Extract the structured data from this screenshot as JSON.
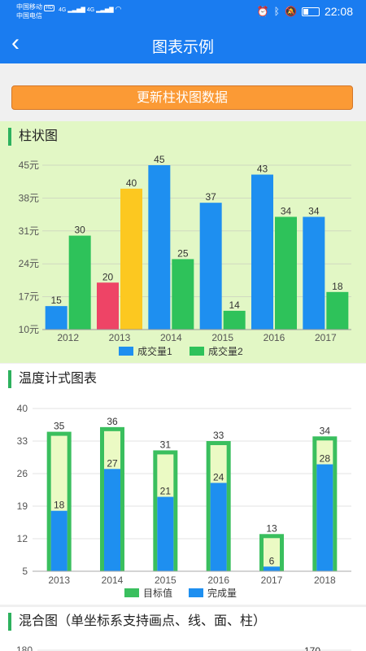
{
  "status_bar": {
    "carrier1": "中国移动",
    "carrier2": "中国电信",
    "hd_badge": "HD",
    "signal1": "4G",
    "signal2": "4G",
    "time": "22:08",
    "icons": [
      "alarm-icon",
      "bluetooth-icon",
      "mute-icon",
      "battery-icon"
    ]
  },
  "nav": {
    "back_icon": "‹",
    "title": "图表示例"
  },
  "update_button": {
    "label": "更新柱状图数据",
    "color": "#fb9a35"
  },
  "sections": {
    "bar": {
      "title": "柱状图"
    },
    "thermo": {
      "title": "温度计式图表"
    },
    "mixed": {
      "title": "混合图（单坐标系支持画点、线、面、柱）"
    }
  },
  "chart_data": [
    {
      "type": "bar",
      "categories": [
        "2012",
        "2013",
        "2014",
        "2015",
        "2016",
        "2017"
      ],
      "series": [
        {
          "name": "成交量1",
          "values": [
            15,
            20,
            45,
            37,
            43,
            34
          ],
          "color": "#1e8ff0",
          "point_colors": [
            null,
            "#ee4466",
            null,
            null,
            null,
            null
          ]
        },
        {
          "name": "成交量2",
          "values": [
            30,
            40,
            25,
            14,
            34,
            18
          ],
          "color": "#2ec25a",
          "point_colors": [
            null,
            "#fcc820",
            null,
            null,
            null,
            null
          ]
        }
      ],
      "y_ticks": [
        "10元",
        "17元",
        "24元",
        "31元",
        "38元",
        "45元"
      ],
      "ylim": [
        10,
        45
      ],
      "legend": "bottom",
      "grid": true
    },
    {
      "type": "bar",
      "categories": [
        "2013",
        "2014",
        "2015",
        "2016",
        "2017",
        "2018"
      ],
      "series": [
        {
          "name": "目标值",
          "values": [
            35,
            36,
            31,
            33,
            13,
            34
          ],
          "color": "#3abf5e",
          "fill": "#ebfac4"
        },
        {
          "name": "完成量",
          "values": [
            18,
            27,
            21,
            24,
            6,
            28
          ],
          "color": "#1e8ff0"
        }
      ],
      "y_ticks": [
        "5",
        "12",
        "19",
        "26",
        "33",
        "40"
      ],
      "ylim": [
        5,
        40
      ],
      "legend": "bottom",
      "grid": true
    },
    {
      "type": "bar",
      "y_ticks": [
        "180"
      ],
      "data_labels": [
        "170"
      ]
    }
  ]
}
